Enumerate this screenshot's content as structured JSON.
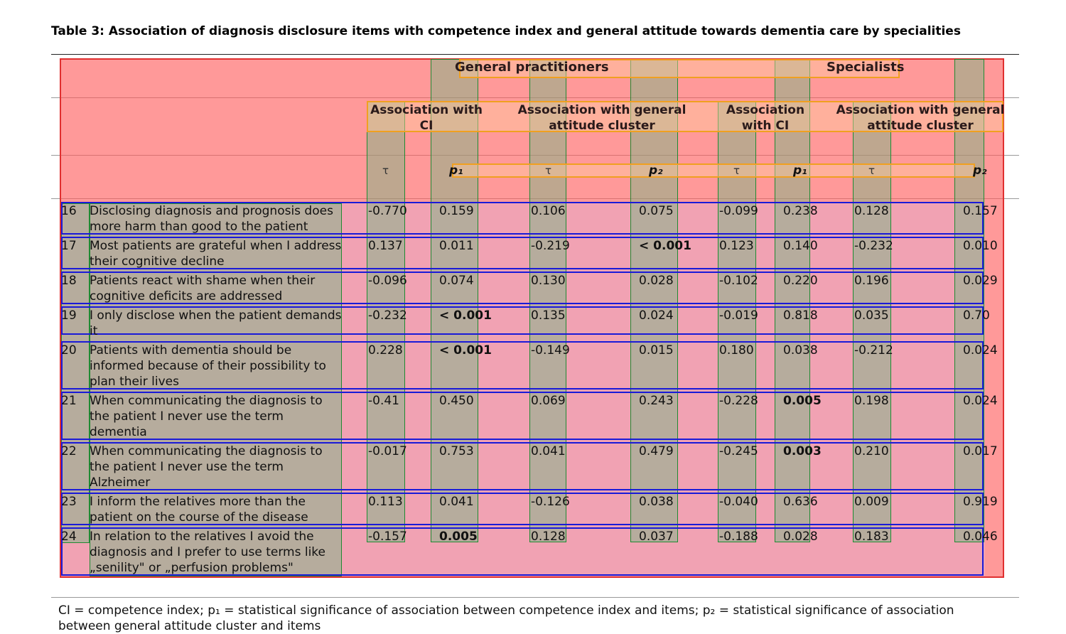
{
  "caption": "Table 3: Association of diagnosis disclosure items with competence index and general attitude towards dementia care by specialities",
  "groups": {
    "gp": "General practitioners",
    "sp": "Specialists"
  },
  "subheaders": {
    "gp_ci": "Association with CI",
    "gp_att": "Association with general attitude cluster",
    "sp_ci": "Association with CI",
    "sp_att": "Association with general attitude cluster"
  },
  "symbols": {
    "tau": "τ",
    "p1": "p₁",
    "p2": "p₂"
  },
  "rows": [
    {
      "no": "16",
      "item": "Disclosing diagnosis and prognosis does more harm than good to the patient",
      "v": [
        "-0.770",
        "0.159",
        "0.106",
        "0.075",
        "-0.099",
        "0.238",
        "0.128",
        "0.157"
      ]
    },
    {
      "no": "17",
      "item": "Most patients are grateful when I address their cognitive decline",
      "v": [
        "0.137",
        "0.011",
        "-0.219",
        "< 0.001",
        "0.123",
        "0.140",
        "-0.232",
        "0.010"
      ]
    },
    {
      "no": "18",
      "item": "Patients react with shame when their cognitive deficits are addressed",
      "v": [
        "-0.096",
        "0.074",
        "0.130",
        "0.028",
        "-0.102",
        "0.220",
        "0.196",
        "0.029"
      ]
    },
    {
      "no": "19",
      "item": "I only disclose when the patient demands it",
      "v": [
        "-0.232",
        "< 0.001",
        "0.135",
        "0.024",
        "-0.019",
        "0.818",
        "0.035",
        "0.70"
      ]
    },
    {
      "no": "20",
      "item": "Patients with dementia should be informed because of their possibility to plan their lives",
      "v": [
        "0.228",
        "< 0.001",
        "-0.149",
        "0.015",
        "0.180",
        "0.038",
        "-0.212",
        "0.024"
      ]
    },
    {
      "no": "21",
      "item": "When communicating the diagnosis to the patient I never use the term dementia",
      "v": [
        "-0.41",
        "0.450",
        "0.069",
        "0.243",
        "-0.228",
        "0.005",
        "0.198",
        "0.024"
      ]
    },
    {
      "no": "22",
      "item": "When communicating the diagnosis to the patient I never use the term Alzheimer",
      "v": [
        "-0.017",
        "0.753",
        "0.041",
        "0.479",
        "-0.245",
        "0.003",
        "0.210",
        "0.017"
      ]
    },
    {
      "no": "23",
      "item": "I inform the relatives more than the patient on the course of the disease",
      "v": [
        "0.113",
        "0.041",
        "-0.126",
        "0.038",
        "-0.040",
        "0.636",
        "0.009",
        "0.919"
      ]
    },
    {
      "no": "24",
      "item": "In relation to the relatives I avoid the diagnosis and I prefer to use terms like „senility\" or „perfusion problems\"",
      "v": [
        "-0.157",
        "0.005",
        "0.128",
        "0.037",
        "-0.188",
        "0.028",
        "0.183",
        "0.046"
      ]
    }
  ],
  "bold_cells": [
    "< 0.001",
    "0.005",
    "0.003"
  ],
  "footnote": "CI = competence index; p₁ = statistical significance of association between competence index and items; p₂ = statistical significance of association between general attitude cluster and items",
  "colors": {
    "red_overlay": "#ff5a5a",
    "green_overlay": "#1f8a32",
    "orange_overlay": "#f0a020",
    "blue_overlay": "#1a1ad8",
    "pink_overlay": "#e6aac8"
  }
}
